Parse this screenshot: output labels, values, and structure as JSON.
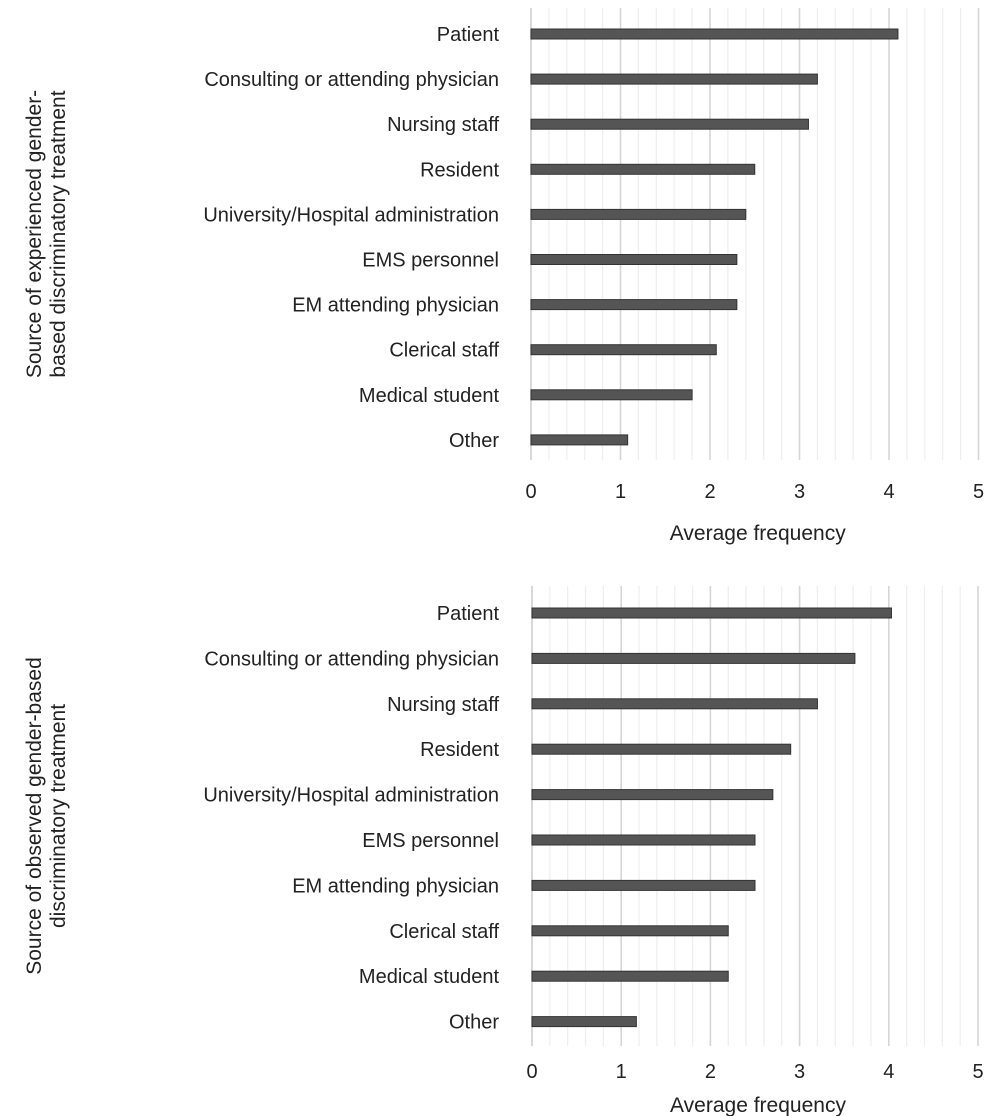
{
  "chart_data": [
    {
      "type": "bar",
      "orientation": "horizontal",
      "ylabel_lines": [
        "Source of experienced gender-",
        "based discriminatory treatment"
      ],
      "xlabel": "Average frequency",
      "categories": [
        "Patient",
        "Consulting or attending physician",
        "Nursing staff",
        "Resident",
        "University/Hospital administration",
        "EMS personnel",
        "EM attending physician",
        "Clerical staff",
        "Medical student",
        "Other"
      ],
      "values": [
        4.1,
        3.2,
        3.1,
        2.5,
        2.4,
        2.3,
        2.3,
        2.07,
        1.8,
        1.08
      ],
      "xlim": [
        0,
        5
      ],
      "xticks": [
        "0",
        "1",
        "2",
        "3",
        "4",
        "5"
      ],
      "grid": "vertical",
      "bar_color": "#555555"
    },
    {
      "type": "bar",
      "orientation": "horizontal",
      "ylabel_lines": [
        "Source of observed gender-based",
        "discriminatory treatment"
      ],
      "xlabel": "Average frequency",
      "categories": [
        "Patient",
        "Consulting or attending physician",
        "Nursing staff",
        "Resident",
        "University/Hospital administration",
        "EMS personnel",
        "EM attending physician",
        "Clerical staff",
        "Medical student",
        "Other"
      ],
      "values": [
        4.03,
        3.62,
        3.2,
        2.9,
        2.7,
        2.5,
        2.5,
        2.2,
        2.2,
        1.17
      ],
      "xlim": [
        0,
        5
      ],
      "xticks": [
        "0",
        "1",
        "2",
        "3",
        "4",
        "5"
      ],
      "grid": "vertical",
      "bar_color": "#555555"
    }
  ]
}
